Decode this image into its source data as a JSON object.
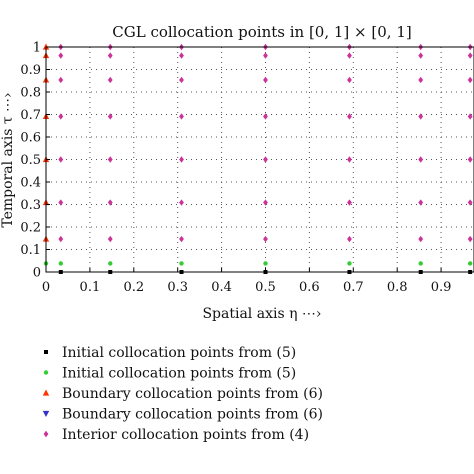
{
  "chart_data": {
    "type": "scatter",
    "title": "CGL collocation points in [0, 1] × [0, 1]",
    "xlabel": "Spatial axis η ⋯›",
    "ylabel": "Temporal axis τ ⋯›",
    "xlim": [
      0,
      0.975
    ],
    "ylim": [
      0,
      1
    ],
    "x_ticks": [
      "0",
      "0.1",
      "0.2",
      "0.3",
      "0.4",
      "0.5",
      "0.6",
      "0.7",
      "0.8",
      "0.9"
    ],
    "x_tick_values": [
      0,
      0.1,
      0.2,
      0.3,
      0.4,
      0.5,
      0.6,
      0.7,
      0.8,
      0.9
    ],
    "y_ticks": [
      "0",
      "0.1",
      "0.2",
      "0.3",
      "0.4",
      "0.5",
      "0.6",
      "0.7",
      "0.8",
      "0.9",
      "1"
    ],
    "y_tick_values": [
      0,
      0.1,
      0.2,
      0.3,
      0.4,
      0.5,
      0.6,
      0.7,
      0.8,
      0.9,
      1
    ],
    "grid": true,
    "legend_position": "below",
    "series": [
      {
        "name": "Initial collocation points from (5)",
        "marker": "square",
        "color": "#000000",
        "points": [
          [
            0.0337,
            0
          ],
          [
            0.1464,
            0
          ],
          [
            0.3087,
            0
          ],
          [
            0.5,
            0
          ],
          [
            0.6913,
            0
          ],
          [
            0.8536,
            0
          ],
          [
            0.9663,
            0
          ]
        ]
      },
      {
        "name": "Initial collocation points from (5)",
        "marker": "circle",
        "color": "#33cc33",
        "points": [
          [
            0,
            0.0381
          ],
          [
            0.0337,
            0.0381
          ],
          [
            0.1464,
            0.0381
          ],
          [
            0.3087,
            0.0381
          ],
          [
            0.5,
            0.0381
          ],
          [
            0.6913,
            0.0381
          ],
          [
            0.8536,
            0.0381
          ],
          [
            0.9663,
            0.0381
          ]
        ]
      },
      {
        "name": "Boundary collocation points from (6)",
        "marker": "triangle-up",
        "color": "#ff3300",
        "points": [
          [
            0,
            0.1464
          ],
          [
            0,
            0.3087
          ],
          [
            0,
            0.5
          ],
          [
            0,
            0.6913
          ],
          [
            0,
            0.8536
          ],
          [
            0,
            0.9619
          ],
          [
            0,
            1
          ]
        ]
      },
      {
        "name": "Boundary collocation points from (6)",
        "marker": "triangle-down",
        "color": "#3333cc",
        "points": []
      },
      {
        "name": "Interior collocation points from (4)",
        "marker": "diamond",
        "color": "#cc3399",
        "x": [
          0.0337,
          0.1464,
          0.3087,
          0.5,
          0.6913,
          0.8536,
          0.9663
        ],
        "y": [
          0.1464,
          0.3087,
          0.5,
          0.6913,
          0.8536,
          0.9619,
          1
        ]
      }
    ]
  }
}
